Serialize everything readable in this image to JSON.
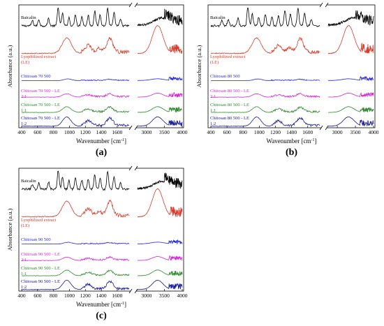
{
  "figure": {
    "panels": [
      {
        "id": "a",
        "caption": "(a)",
        "ylabel": "Absorbance (a.u.)",
        "xlabel": "Wavenumber [cm",
        "xlabel_sup": "-1",
        "x_ticks_left": [
          "400",
          "600",
          "800",
          "1000",
          "1200",
          "1400",
          "1600"
        ],
        "x_ticks_right": [
          "3000",
          "3500",
          "4000"
        ],
        "traces": [
          {
            "label": [
              "Baicalin"
            ],
            "color": "#000000"
          },
          {
            "label": [
              "Lyophilized extract",
              "(LE)"
            ],
            "color": "#d73a2a"
          },
          {
            "label": [
              "Chitosan 70 500"
            ],
            "color": "#2b2bd6"
          },
          {
            "label": [
              "Chitosan 70 500 - LE",
              "2:1"
            ],
            "color": "#d02bd0"
          },
          {
            "label": [
              "Chitosan 70 500 - LE",
              "1:1"
            ],
            "color": "#2e8b2e"
          },
          {
            "label": [
              "Chitosan 70 500 - LE",
              "1:2"
            ],
            "color": "#1b1b9a"
          }
        ]
      },
      {
        "id": "b",
        "caption": "(b)",
        "ylabel": "Absorbance (a.u.)",
        "xlabel": "Wavenumber [cm",
        "xlabel_sup": "-1",
        "x_ticks_left": [
          "400",
          "600",
          "800",
          "1000",
          "1200",
          "1400",
          "1600"
        ],
        "x_ticks_right": [
          "3000",
          "3500",
          "4000"
        ],
        "traces": [
          {
            "label": [
              "Baicalin"
            ],
            "color": "#000000"
          },
          {
            "label": [
              "Lyophilized extract",
              "(LE)"
            ],
            "color": "#d73a2a"
          },
          {
            "label": [
              "Chitosan 80 500"
            ],
            "color": "#2b2bd6"
          },
          {
            "label": [
              "Chitosan 80 500 - LE",
              "2:1"
            ],
            "color": "#d02bd0"
          },
          {
            "label": [
              "Chitosan 80 500 - LE",
              "1:1"
            ],
            "color": "#2e8b2e"
          },
          {
            "label": [
              "Chitosan 80 500 - LE",
              "1:2"
            ],
            "color": "#1b1b9a"
          }
        ]
      },
      {
        "id": "c",
        "caption": "(c)",
        "ylabel": "Absorbance (a.u.)",
        "xlabel": "Wavenumber [cm",
        "xlabel_sup": "-1",
        "x_ticks_left": [
          "400",
          "600",
          "800",
          "1000",
          "1200",
          "1400",
          "1600"
        ],
        "x_ticks_right": [
          "3000",
          "3500",
          "4000"
        ],
        "traces": [
          {
            "label": [
              "Baicalin"
            ],
            "color": "#000000"
          },
          {
            "label": [
              "Lyophilized extract",
              "(LE)"
            ],
            "color": "#d73a2a"
          },
          {
            "label": [
              "Chitosan 90 500"
            ],
            "color": "#2b2bd6"
          },
          {
            "label": [
              "Chitosan 90 500 - LE",
              "2:1"
            ],
            "color": "#d02bd0"
          },
          {
            "label": [
              "Chitosan 90 500 - LE",
              "1:1"
            ],
            "color": "#2e8b2e"
          },
          {
            "label": [
              "Chitosan 90 500 - LE",
              "1:2"
            ],
            "color": "#1b1b9a"
          }
        ]
      }
    ]
  },
  "chart_data": [
    {
      "type": "line",
      "panel": "a",
      "xlabel": "Wavenumber [cm-1]",
      "ylabel": "Absorbance (a.u.)",
      "x_segments": [
        [
          400,
          1750
        ],
        [
          2750,
          4000
        ]
      ],
      "series": [
        {
          "name": "Baicalin",
          "color": "#000000"
        },
        {
          "name": "Lyophilized extract (LE)",
          "color": "#d73a2a"
        },
        {
          "name": "Chitosan 70 500",
          "color": "#2b2bd6"
        },
        {
          "name": "Chitosan 70 500 - LE 2:1",
          "color": "#d02bd0"
        },
        {
          "name": "Chitosan 70 500 - LE 1:1",
          "color": "#2e8b2e"
        },
        {
          "name": "Chitosan 70 500 - LE 1:2",
          "color": "#1b1b9a"
        }
      ]
    },
    {
      "type": "line",
      "panel": "b",
      "xlabel": "Wavenumber [cm-1]",
      "ylabel": "Absorbance (a.u.)",
      "x_segments": [
        [
          400,
          1750
        ],
        [
          2750,
          4000
        ]
      ],
      "series": [
        {
          "name": "Baicalin",
          "color": "#000000"
        },
        {
          "name": "Lyophilized extract (LE)",
          "color": "#d73a2a"
        },
        {
          "name": "Chitosan 80 500",
          "color": "#2b2bd6"
        },
        {
          "name": "Chitosan 80 500 - LE 2:1",
          "color": "#d02bd0"
        },
        {
          "name": "Chitosan 80 500 - LE 1:1",
          "color": "#2e8b2e"
        },
        {
          "name": "Chitosan 80 500 - LE 1:2",
          "color": "#1b1b9a"
        }
      ]
    },
    {
      "type": "line",
      "panel": "c",
      "xlabel": "Wavenumber [cm-1]",
      "ylabel": "Absorbance (a.u.)",
      "x_segments": [
        [
          400,
          1750
        ],
        [
          2750,
          4000
        ]
      ],
      "series": [
        {
          "name": "Baicalin",
          "color": "#000000"
        },
        {
          "name": "Lyophilized extract (LE)",
          "color": "#d73a2a"
        },
        {
          "name": "Chitosan 90 500",
          "color": "#2b2bd6"
        },
        {
          "name": "Chitosan 90 500 - LE 2:1",
          "color": "#d02bd0"
        },
        {
          "name": "Chitosan 90 500 - LE 1:1",
          "color": "#2e8b2e"
        },
        {
          "name": "Chitosan 90 500 - LE 1:2",
          "color": "#1b1b9a"
        }
      ]
    }
  ]
}
